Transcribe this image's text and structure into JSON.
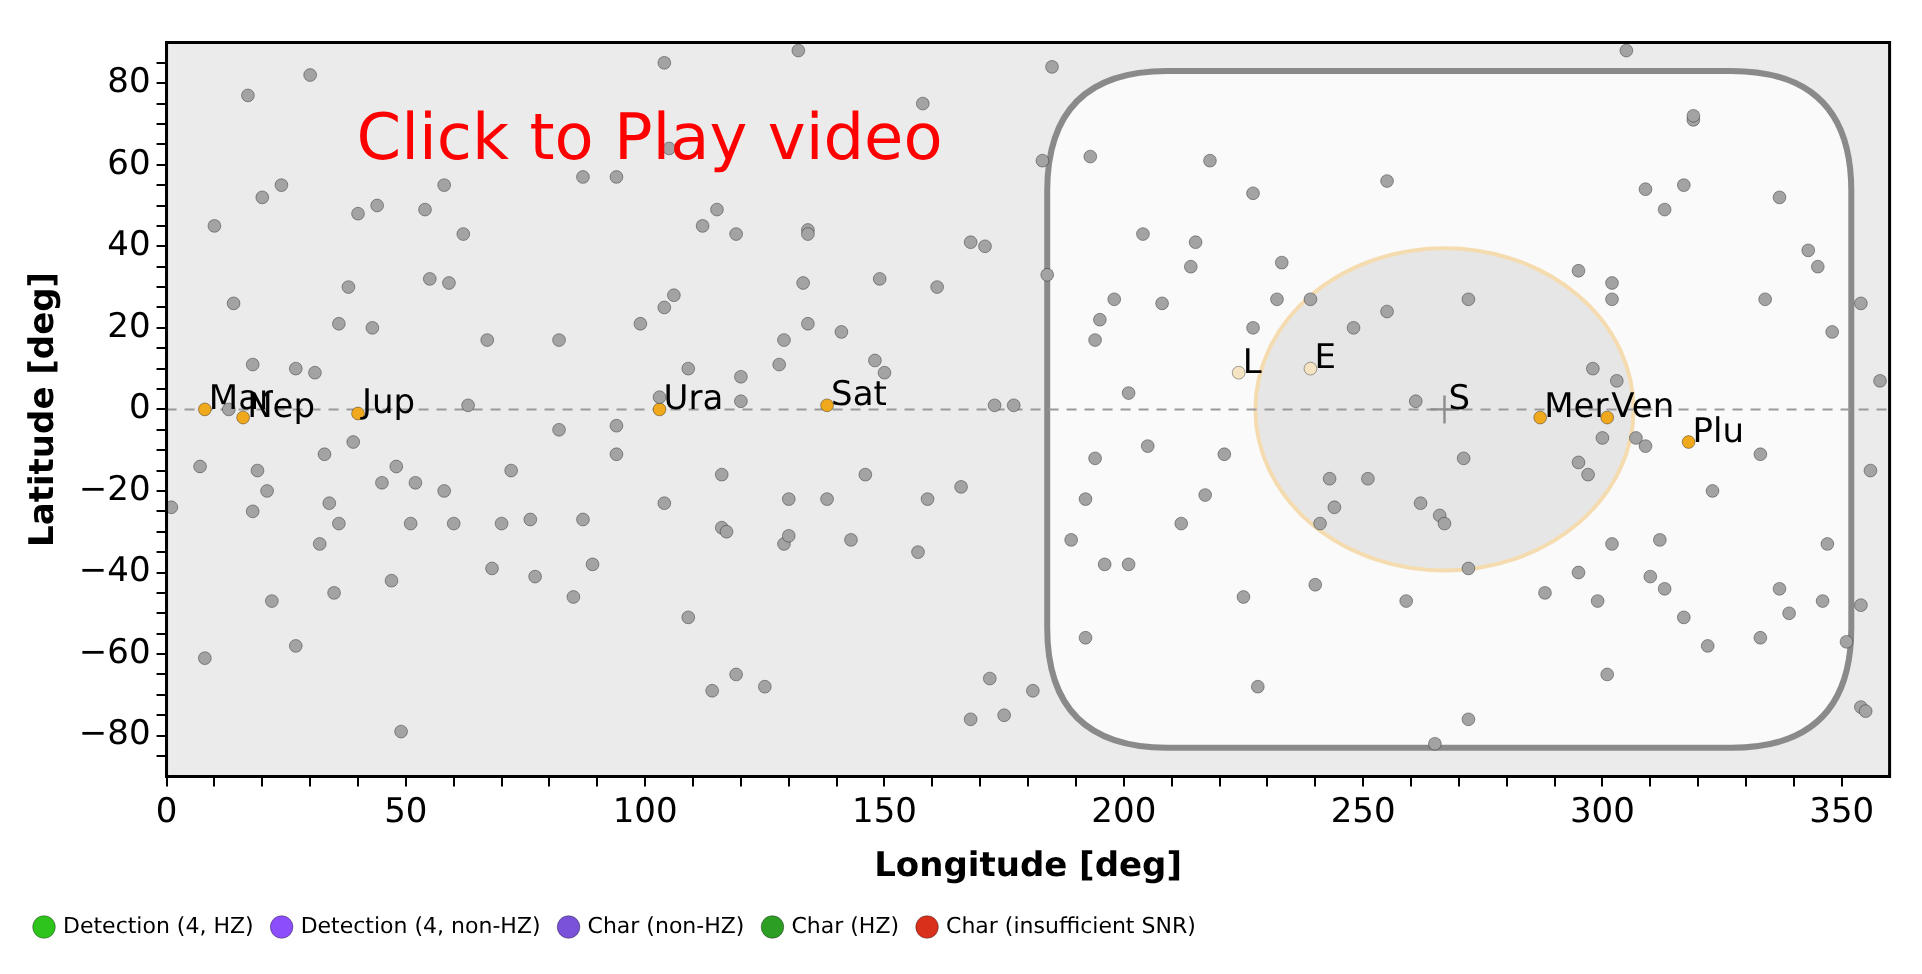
{
  "chart_data": {
    "type": "scatter",
    "xlabel": "Longitude [deg]",
    "ylabel": "Latitude [deg]",
    "xlim": [
      0,
      360
    ],
    "ylim": [
      -90,
      90
    ],
    "xticks": [
      0,
      {
        "value": 10,
        "label": null
      },
      {
        "value": 20,
        "label": null
      },
      {
        "value": 30,
        "label": null
      },
      {
        "value": 40,
        "label": null
      },
      50,
      {
        "value": 60,
        "label": null
      },
      {
        "value": 70,
        "label": null
      },
      {
        "value": 80,
        "label": null
      },
      {
        "value": 90,
        "label": null
      },
      100,
      {
        "value": 110,
        "label": null
      },
      {
        "value": 120,
        "label": null
      },
      {
        "value": 130,
        "label": null
      },
      {
        "value": 140,
        "label": null
      },
      150,
      {
        "value": 160,
        "label": null
      },
      {
        "value": 170,
        "label": null
      },
      {
        "value": 180,
        "label": null
      },
      {
        "value": 190,
        "label": null
      },
      200,
      {
        "value": 210,
        "label": null
      },
      {
        "value": 220,
        "label": null
      },
      {
        "value": 230,
        "label": null
      },
      {
        "value": 240,
        "label": null
      },
      250,
      {
        "value": 260,
        "label": null
      },
      {
        "value": 270,
        "label": null
      },
      {
        "value": 280,
        "label": null
      },
      {
        "value": 290,
        "label": null
      },
      300,
      {
        "value": 310,
        "label": null
      },
      {
        "value": 320,
        "label": null
      },
      {
        "value": 330,
        "label": null
      },
      {
        "value": 340,
        "label": null
      },
      350
    ],
    "yticks": [
      {
        "value": -85,
        "label": null
      },
      {
        "value": -80,
        "label": "−80"
      },
      {
        "value": -75,
        "label": null
      },
      {
        "value": -70,
        "label": null
      },
      {
        "value": -65,
        "label": null
      },
      {
        "value": -60,
        "label": "−60"
      },
      {
        "value": -55,
        "label": null
      },
      {
        "value": -50,
        "label": null
      },
      {
        "value": -45,
        "label": null
      },
      {
        "value": -40,
        "label": "−40"
      },
      {
        "value": -35,
        "label": null
      },
      {
        "value": -30,
        "label": null
      },
      {
        "value": -25,
        "label": null
      },
      {
        "value": -20,
        "label": "−20"
      },
      {
        "value": -15,
        "label": null
      },
      {
        "value": -10,
        "label": null
      },
      {
        "value": -5,
        "label": null
      },
      0,
      {
        "value": 5,
        "label": null
      },
      {
        "value": 10,
        "label": null
      },
      {
        "value": 15,
        "label": null
      },
      20,
      {
        "value": 25,
        "label": null
      },
      {
        "value": 30,
        "label": null
      },
      {
        "value": 35,
        "label": null
      },
      40,
      {
        "value": 45,
        "label": null
      },
      {
        "value": 50,
        "label": null
      },
      {
        "value": 55,
        "label": null
      },
      60,
      {
        "value": 65,
        "label": null
      },
      {
        "value": 70,
        "label": null
      },
      {
        "value": 75,
        "label": null
      },
      80,
      {
        "value": 85,
        "label": null
      }
    ],
    "grid": false,
    "marker": "circle",
    "legend": "bottom left",
    "series": [
      {
        "color": "#a3a3a3",
        "x": [
          104,
          30,
          17,
          105,
          87,
          94,
          20,
          24,
          10,
          40,
          44,
          54,
          58,
          62,
          112,
          115,
          119,
          14,
          38,
          55,
          59,
          36,
          43,
          67,
          82,
          99,
          104,
          106,
          18,
          27,
          31,
          109,
          63,
          120,
          13,
          103,
          120,
          132,
          185,
          158,
          183,
          193,
          134,
          134,
          168,
          171,
          133,
          149,
          161,
          184,
          218,
          227,
          204,
          215,
          214,
          233,
          232,
          239,
          198,
          208,
          195,
          194,
          227,
          134,
          141,
          129,
          128,
          148,
          150,
          201,
          173,
          177,
          305,
          319,
          319,
          255,
          309,
          317,
          313,
          337,
          343,
          345,
          354,
          295,
          302,
          302,
          334,
          348,
          358,
          272,
          255,
          248,
          298,
          303,
          261,
          1,
          7,
          8,
          18,
          19,
          21,
          22,
          27,
          32,
          33,
          34,
          35,
          36,
          39,
          45,
          47,
          48,
          49,
          51,
          52,
          58,
          60,
          68,
          70,
          72,
          76,
          77,
          82,
          87,
          85,
          89,
          94,
          94,
          104,
          109,
          114,
          116,
          116,
          117,
          119,
          146,
          130,
          138,
          159,
          166,
          129,
          130,
          143,
          157,
          125,
          172,
          181,
          168,
          175,
          205,
          194,
          221,
          192,
          217,
          212,
          189,
          196,
          201,
          225,
          240,
          192,
          228,
          243,
          244,
          241,
          300,
          307,
          309,
          333,
          356,
          323,
          271,
          251,
          295,
          297,
          262,
          266,
          267,
          272,
          259,
          302,
          312,
          295,
          310,
          313,
          288,
          299,
          317,
          322,
          333,
          337,
          339,
          346,
          347,
          354,
          351,
          354,
          355,
          301,
          272,
          265
        ],
        "values": [
          85,
          82,
          77,
          64,
          57,
          57,
          52,
          55,
          45,
          48,
          50,
          49,
          55,
          43,
          45,
          49,
          43,
          26,
          30,
          32,
          31,
          21,
          20,
          17,
          17,
          21,
          25,
          28,
          11,
          10,
          9,
          10,
          1,
          2,
          0,
          3,
          8,
          88,
          84,
          75,
          61,
          62,
          44,
          43,
          41,
          40,
          31,
          32,
          30,
          33,
          61,
          53,
          43,
          41,
          35,
          36,
          27,
          27,
          27,
          26,
          22,
          17,
          20,
          21,
          19,
          17,
          11,
          12,
          9,
          4,
          1,
          1,
          88,
          71,
          72,
          56,
          54,
          55,
          49,
          52,
          39,
          35,
          26,
          34,
          31,
          27,
          27,
          19,
          7,
          27,
          24,
          20,
          10,
          7,
          2,
          -24,
          -14,
          -61,
          -25,
          -15,
          -20,
          -47,
          -58,
          -33,
          -11,
          -23,
          -45,
          -28,
          -8,
          -18,
          -42,
          -14,
          -79,
          -28,
          -18,
          -20,
          -28,
          -39,
          -28,
          -15,
          -27,
          -41,
          -5,
          -27,
          -46,
          -38,
          -4,
          -11,
          -23,
          -51,
          -69,
          -16,
          -29,
          -30,
          -65,
          -16,
          -22,
          -22,
          -22,
          -19,
          -33,
          -31,
          -32,
          -35,
          -68,
          -66,
          -69,
          -76,
          -75,
          -9,
          -12,
          -11,
          -22,
          -21,
          -28,
          -32,
          -38,
          -38,
          -46,
          -43,
          -56,
          -68,
          -17,
          -24,
          -28,
          -7,
          -7,
          -9,
          -11,
          -15,
          -20,
          -12,
          -17,
          -13,
          -16,
          -23,
          -26,
          -28,
          -39,
          -47,
          -33,
          -32,
          -40,
          -41,
          -44,
          -45,
          -47,
          -51,
          -58,
          -56,
          -44,
          -50,
          -47,
          -33,
          -48,
          -57,
          -73,
          -74,
          -65,
          -76,
          -82
        ]
      },
      {
        "colors": [
          "#f0a81c",
          "#f0a81c",
          "#f0a81c",
          "#f0a81c",
          "#f0a81c",
          "#f5e4c4",
          "#f5e4c4",
          "#f0a81c",
          "#f0a81c",
          "#f0a81c"
        ],
        "x": [
          8,
          16,
          40,
          103,
          138,
          224,
          239,
          287,
          301,
          318
        ],
        "values": [
          0,
          -2,
          -1,
          0,
          1,
          9,
          10,
          -2,
          -2,
          -8
        ]
      },
      {
        "color": "#8c8c8c",
        "marker": "cross",
        "x": [
          267
        ],
        "values": [
          0
        ]
      },
      {
        "name": "Detection (4, HZ)",
        "color": "#2fc41c"
      },
      {
        "name": "Detection (4, non-HZ)",
        "color": "#8c4dfa"
      },
      {
        "name": "Char (non-HZ)",
        "color": "#7a52d9"
      },
      {
        "name": "Char (HZ)",
        "color": "#2c9e24"
      },
      {
        "name": "Char (insufficient SNR)",
        "color": "#d9301c"
      }
    ],
    "bands": [
      {
        "axis": "x",
        "from": 184,
        "to": 352,
        "color": "#fafafa"
      }
    ],
    "ref_lines": [
      {
        "axis": "y",
        "value": 0,
        "color": "#9a9a9a",
        "line_style": "dashed"
      }
    ],
    "annotations": [
      "Click to Play video",
      {
        "text": "Mar",
        "x": 8,
        "y": 0
      },
      {
        "text": "Nep",
        "x": 16,
        "y": -2
      },
      {
        "text": "Jup",
        "x": 40,
        "y": -1
      },
      {
        "text": "Ura",
        "x": 103,
        "y": 0
      },
      {
        "text": "Sat",
        "x": 138,
        "y": 1
      },
      {
        "text": "L",
        "x": 224,
        "y": 9
      },
      {
        "text": "E",
        "x": 239,
        "y": 10
      },
      {
        "text": "S",
        "x": 267,
        "y": 0
      },
      {
        "text": "Mer",
        "x": 287,
        "y": -2
      },
      {
        "text": "Ven",
        "x": 301,
        "y": -2
      },
      {
        "text": "Plu",
        "x": 318,
        "y": -8
      }
    ]
  }
}
